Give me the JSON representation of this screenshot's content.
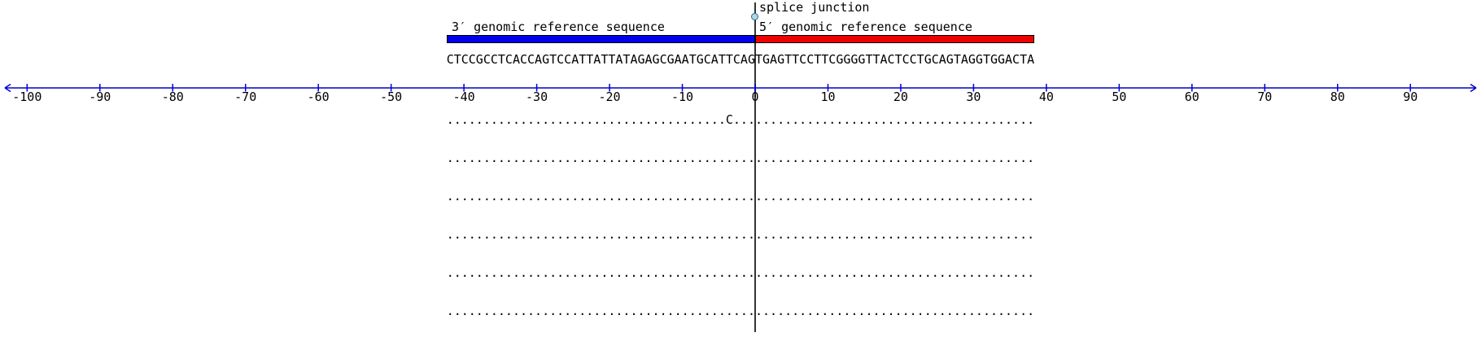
{
  "annotation": {
    "splice_junction_label": "splice junction"
  },
  "tracks": {
    "three_prime": {
      "label": "3′ genomic reference sequence",
      "sequence": "CTCCGCCTCACCAGTCCATTATTATAGAGCGAATGCATTCAG",
      "color": "#0000ee"
    },
    "five_prime": {
      "label": "5′ genomic reference sequence",
      "sequence": "TGAGTTCCTTCGGGGTTACTCCTGCAGTAGGTGGACTA",
      "color": "#ee0000"
    }
  },
  "axis": {
    "min": -100,
    "max": 90,
    "tick_step": 10,
    "ticks": [
      -100,
      -90,
      -80,
      -70,
      -60,
      -50,
      -40,
      -30,
      -20,
      -10,
      0,
      10,
      20,
      30,
      40,
      50,
      60,
      70,
      80,
      90
    ],
    "color": "#0000cc"
  },
  "marker": {
    "fill": "#add8e6",
    "stroke": "#35658f"
  },
  "junction_line_color": "#333333",
  "reads": [
    {
      "three_prime": "......................................C...",
      "five_prime": "......................................"
    },
    {
      "three_prime": "..........................................",
      "five_prime": "......................................"
    },
    {
      "three_prime": "..........................................",
      "five_prime": "......................................"
    },
    {
      "three_prime": "..........................................",
      "five_prime": "......................................"
    },
    {
      "three_prime": "..........................................",
      "five_prime": "......................................"
    },
    {
      "three_prime": "..........................................",
      "five_prime": "......................................"
    }
  ],
  "chart_data": {
    "type": "sequence-alignment",
    "title": "splice junction",
    "xlim": [
      -100,
      90
    ],
    "tick_labels": [
      -100,
      -90,
      -80,
      -70,
      -60,
      -50,
      -40,
      -30,
      -20,
      -10,
      0,
      10,
      20,
      30,
      40,
      50,
      60,
      70,
      80,
      90
    ],
    "splice_junction_position": 0,
    "reference_3prime": {
      "label": "3′ genomic reference sequence",
      "sequence": "CTCCGCCTCACCAGTCCATTATTATAGAGCGAATGCATTCAG",
      "range": [
        -42,
        -1
      ]
    },
    "reference_5prime": {
      "label": "5′ genomic reference sequence",
      "sequence": "TGAGTTCCTTCGGGGTTACTCCTGCAGTAGGTGGACTA",
      "range": [
        0,
        37
      ]
    },
    "alignment_rows_count": 6,
    "mismatches": [
      {
        "row": 1,
        "position": -4,
        "base": "C"
      }
    ],
    "legend_position": "none",
    "grid": false
  }
}
